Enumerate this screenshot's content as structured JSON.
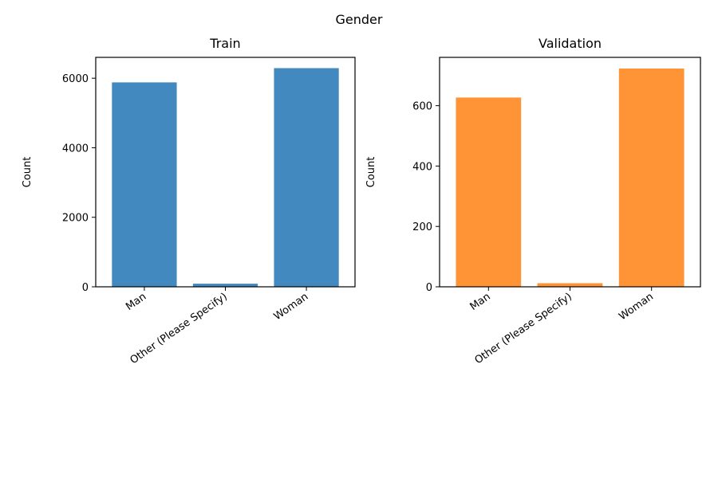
{
  "chart_data": {
    "suptitle": "Gender",
    "colors": {
      "train": "#4189bf",
      "validation": "#ff9436"
    },
    "panels": [
      {
        "type": "bar",
        "title": "Train",
        "ylabel": "Count",
        "categories": [
          "Man",
          "Other (Please Specify)",
          "Woman"
        ],
        "values": [
          5880,
          90,
          6290
        ],
        "ylim": [
          0,
          6600
        ],
        "yticks": [
          0,
          2000,
          4000,
          6000
        ],
        "color": "#4189bf"
      },
      {
        "type": "bar",
        "title": "Validation",
        "ylabel": "Count",
        "categories": [
          "Man",
          "Other (Please Specify)",
          "Woman"
        ],
        "values": [
          627,
          12,
          723
        ],
        "ylim": [
          0,
          760
        ],
        "yticks": [
          0,
          200,
          400,
          600
        ],
        "color": "#ff9436"
      }
    ]
  }
}
